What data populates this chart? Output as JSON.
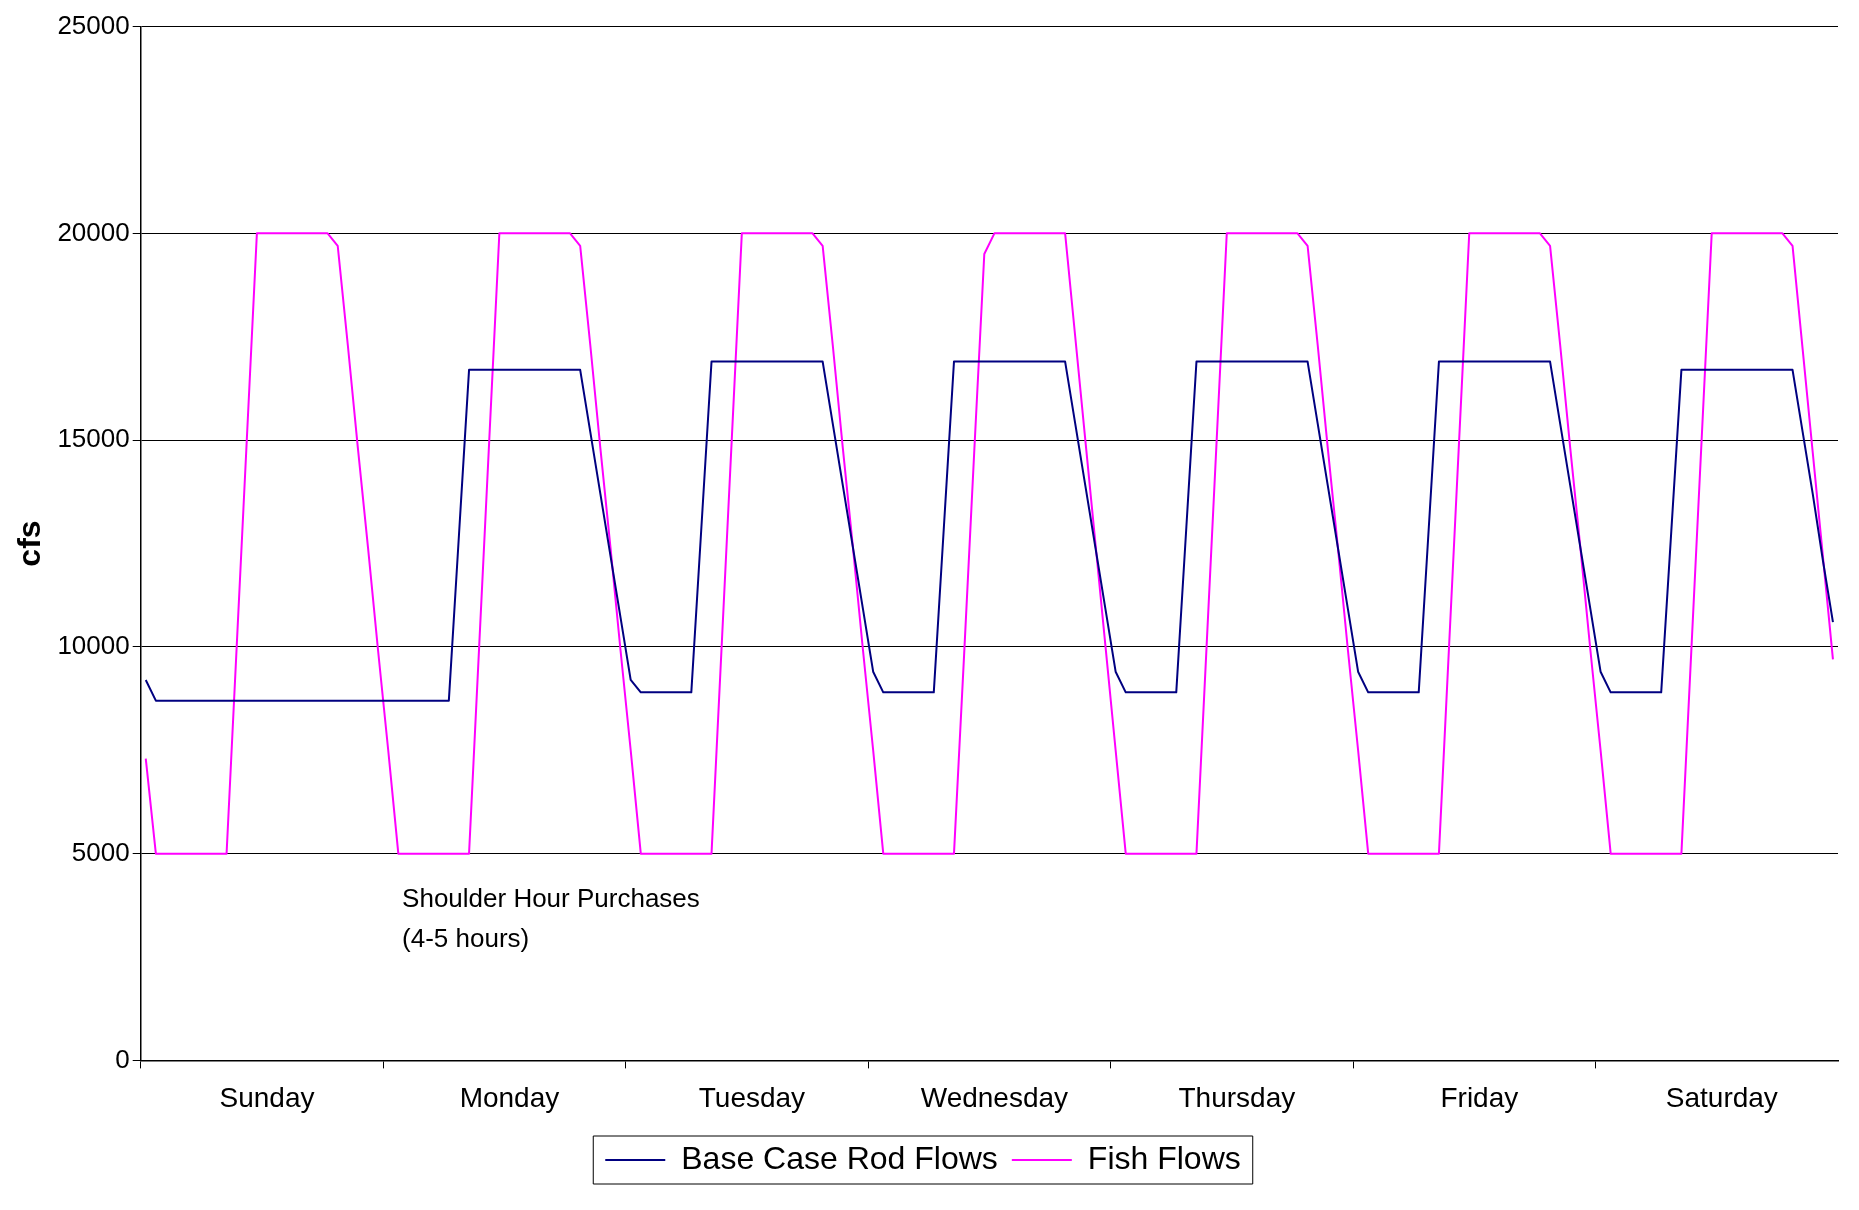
{
  "chart_data": {
    "type": "line",
    "ylabel": "cfs",
    "ylim": [
      0,
      25000
    ],
    "yticks": [
      0,
      5000,
      10000,
      15000,
      20000,
      25000
    ],
    "categories": [
      null,
      null,
      null,
      null,
      null,
      null,
      null,
      null,
      null,
      null,
      null,
      null,
      "Sunday",
      null,
      null,
      null,
      null,
      null,
      null,
      null,
      null,
      null,
      null,
      null,
      null,
      null,
      null,
      null,
      null,
      null,
      null,
      null,
      null,
      null,
      null,
      null,
      "Monday",
      null,
      null,
      null,
      null,
      null,
      null,
      null,
      null,
      null,
      null,
      null,
      null,
      null,
      null,
      null,
      null,
      null,
      null,
      null,
      null,
      null,
      null,
      null,
      "Tuesday",
      null,
      null,
      null,
      null,
      null,
      null,
      null,
      null,
      null,
      null,
      null,
      null,
      null,
      null,
      null,
      null,
      null,
      null,
      null,
      null,
      null,
      null,
      null,
      "Wednesday",
      null,
      null,
      null,
      null,
      null,
      null,
      null,
      null,
      null,
      null,
      null,
      null,
      null,
      null,
      null,
      null,
      null,
      null,
      null,
      null,
      null,
      null,
      null,
      "Thursday",
      null,
      null,
      null,
      null,
      null,
      null,
      null,
      null,
      null,
      null,
      null,
      null,
      null,
      null,
      null,
      null,
      null,
      null,
      null,
      null,
      null,
      null,
      null,
      "Friday",
      null,
      null,
      null,
      null,
      null,
      null,
      null,
      null,
      null,
      null,
      null,
      null,
      null,
      null,
      null,
      null,
      null,
      null,
      null,
      null,
      null,
      null,
      null,
      "Saturday",
      null,
      null,
      null,
      null,
      null,
      null,
      null,
      null,
      null,
      null,
      null
    ],
    "grid": "y",
    "legend": "bottom",
    "marker": "none",
    "line_style": "solid",
    "annotations": [
      "Shoulder Hour Purchases\n(4-5 hours)"
    ],
    "series": [
      {
        "name": "Base Case Rod Flows",
        "color": "#000080",
        "values": [
          9200,
          8700,
          8700,
          8700,
          8700,
          8700,
          8700,
          8700,
          8700,
          8700,
          8700,
          8700,
          8700,
          8700,
          8700,
          8700,
          8700,
          8700,
          8700,
          8700,
          8700,
          8700,
          8700,
          8700,
          8700,
          8700,
          8700,
          8700,
          8700,
          8700,
          8700,
          12700,
          16700,
          16700,
          16700,
          16700,
          16700,
          16700,
          16700,
          16700,
          16700,
          16700,
          16700,
          16700,
          15200,
          13700,
          12200,
          10700,
          9200,
          8900,
          8900,
          8900,
          8900,
          8900,
          8900,
          12900,
          16900,
          16900,
          16900,
          16900,
          16900,
          16900,
          16900,
          16900,
          16900,
          16900,
          16900,
          16900,
          15400,
          13900,
          12400,
          10900,
          9400,
          8900,
          8900,
          8900,
          8900,
          8900,
          8900,
          12900,
          16900,
          16900,
          16900,
          16900,
          16900,
          16900,
          16900,
          16900,
          16900,
          16900,
          16900,
          16900,
          15400,
          13900,
          12400,
          10900,
          9400,
          8900,
          8900,
          8900,
          8900,
          8900,
          8900,
          12900,
          16900,
          16900,
          16900,
          16900,
          16900,
          16900,
          16900,
          16900,
          16900,
          16900,
          16900,
          16900,
          15400,
          13900,
          12400,
          10900,
          9400,
          8900,
          8900,
          8900,
          8900,
          8900,
          8900,
          12900,
          16900,
          16900,
          16900,
          16900,
          16900,
          16900,
          16900,
          16900,
          16900,
          16900,
          16900,
          16900,
          15400,
          13900,
          12400,
          10900,
          9400,
          8900,
          8900,
          8900,
          8900,
          8900,
          8900,
          12800,
          16700,
          16700,
          16700,
          16700,
          16700,
          16700,
          16700,
          16700,
          16700,
          16700,
          16700,
          16700,
          15200,
          13700,
          12100,
          10600
        ]
      },
      {
        "name": "Fish Flows",
        "color": "#ff00ff",
        "values": [
          7300,
          5000,
          5000,
          5000,
          5000,
          5000,
          5000,
          5000,
          5000,
          10000,
          15000,
          20000,
          20000,
          20000,
          20000,
          20000,
          20000,
          20000,
          20000,
          19700,
          17300,
          14800,
          12400,
          9900,
          7500,
          5000,
          5000,
          5000,
          5000,
          5000,
          5000,
          5000,
          5000,
          10000,
          15000,
          20000,
          20000,
          20000,
          20000,
          20000,
          20000,
          20000,
          20000,
          19700,
          17300,
          14800,
          12400,
          9900,
          7500,
          5000,
          5000,
          5000,
          5000,
          5000,
          5000,
          5000,
          5000,
          10000,
          15000,
          20000,
          20000,
          20000,
          20000,
          20000,
          20000,
          20000,
          20000,
          19700,
          17300,
          14800,
          12400,
          9900,
          7500,
          5000,
          5000,
          5000,
          5000,
          5000,
          5000,
          5000,
          5000,
          9800,
          14700,
          19500,
          20000,
          20000,
          20000,
          20000,
          20000,
          20000,
          20000,
          20000,
          17500,
          15000,
          12500,
          10000,
          7500,
          5000,
          5000,
          5000,
          5000,
          5000,
          5000,
          5000,
          5000,
          10000,
          15000,
          20000,
          20000,
          20000,
          20000,
          20000,
          20000,
          20000,
          20000,
          19700,
          17300,
          14800,
          12400,
          9900,
          7500,
          5000,
          5000,
          5000,
          5000,
          5000,
          5000,
          5000,
          5000,
          10000,
          15000,
          20000,
          20000,
          20000,
          20000,
          20000,
          20000,
          20000,
          20000,
          19700,
          17300,
          14800,
          12400,
          9900,
          7500,
          5000,
          5000,
          5000,
          5000,
          5000,
          5000,
          5000,
          5000,
          10000,
          15000,
          20000,
          20000,
          20000,
          20000,
          20000,
          20000,
          20000,
          20000,
          19700,
          17200,
          14700,
          12200,
          9700
        ]
      }
    ]
  }
}
